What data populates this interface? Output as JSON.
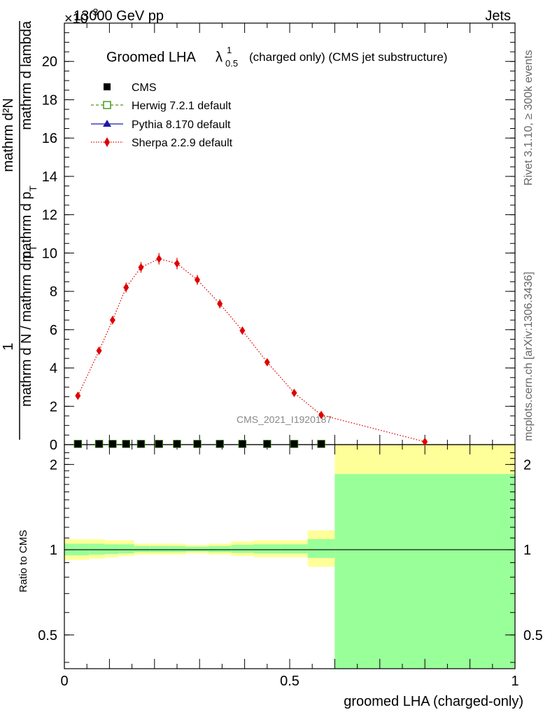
{
  "header": {
    "left": "13000 GeV pp",
    "right": "Jets",
    "exponent": "×10",
    "exponent_power": "-3"
  },
  "side_labels": {
    "rivet": "Rivet 3.1.10, ≥ 300k events",
    "mcplots": "mcplots.cern.ch [arXiv:1306.3436]"
  },
  "watermark": "CMS_2021_I1920187",
  "colors": {
    "cms": "#000000",
    "herwig": "#4a9a1e",
    "pythia": "#1a1aa8",
    "sherpa": "#e00000",
    "band_yellow": "#ffff99",
    "band_green": "#99ff99"
  },
  "chart_data": [
    {
      "type": "line",
      "title": "Groomed LHA",
      "title_symbol": "λ",
      "title_sup": "1",
      "title_sub": "0.5",
      "title_suffix": "(charged only) (CMS jet substructure)",
      "ylabel_top": "mathrm d²N",
      "ylabel_mid": "mathrm d p",
      "ylabel_mid_sub": "T",
      "ylabel_mid2": " mathrm d lambda",
      "ylabel_one": "1",
      "ylabel_bottom": "mathrm d N / mathrm d p",
      "ylabel_bottom_sub": "T",
      "xlim": [
        0,
        1
      ],
      "ylim": [
        0,
        22
      ],
      "yticks": [
        "0",
        "2",
        "4",
        "6",
        "8",
        "10",
        "12",
        "14",
        "16",
        "18",
        "20"
      ],
      "legend": {
        "position": "top-left",
        "entries": [
          "CMS",
          "Herwig 7.2.1 default",
          "Pythia 8.170 default",
          "Sherpa 2.2.9 default"
        ]
      },
      "x": [
        0.03,
        0.077,
        0.107,
        0.137,
        0.17,
        0.21,
        0.25,
        0.295,
        0.345,
        0.395,
        0.45,
        0.51,
        0.57,
        0.8
      ],
      "series": [
        {
          "name": "CMS",
          "values": [
            0,
            0,
            0,
            0,
            0,
            0,
            0,
            0,
            0,
            0,
            0,
            0,
            0,
            null
          ]
        },
        {
          "name": "Herwig 7.2.1 default",
          "values": [
            0,
            0,
            0,
            0,
            0,
            0,
            0,
            0,
            0,
            0,
            0,
            0,
            0,
            null
          ]
        },
        {
          "name": "Pythia 8.170 default",
          "values": [
            0,
            0,
            0,
            0,
            0,
            0,
            0,
            0,
            0,
            0,
            0,
            0,
            0,
            null
          ]
        },
        {
          "name": "Sherpa 2.2.9 default",
          "values": [
            2.55,
            4.9,
            6.5,
            8.2,
            9.25,
            9.7,
            9.45,
            8.6,
            7.35,
            5.95,
            4.3,
            2.7,
            1.55,
            0.15
          ],
          "errors": [
            0.12,
            0.2,
            0.22,
            0.26,
            0.28,
            0.3,
            0.3,
            0.26,
            0.24,
            0.2,
            0.16,
            0.12,
            0.1,
            0.05
          ]
        }
      ]
    },
    {
      "type": "area",
      "ylabel": "Ratio to CMS",
      "xlabel": "groomed LHA (charged-only)",
      "xlim": [
        0,
        1
      ],
      "ylim": [
        0.38,
        2.35
      ],
      "log_y": true,
      "xticks": [
        "0",
        "0.5",
        "1"
      ],
      "yticks": [
        "0.5",
        "1",
        "2"
      ],
      "reference_line": 1,
      "bins": [
        0,
        0.055,
        0.09,
        0.12,
        0.155,
        0.19,
        0.23,
        0.27,
        0.32,
        0.37,
        0.42,
        0.48,
        0.54,
        0.6,
        1.0
      ],
      "band_yellow_lo": [
        0.92,
        0.93,
        0.94,
        0.95,
        0.96,
        0.96,
        0.96,
        0.97,
        0.96,
        0.95,
        0.94,
        0.94,
        0.87,
        0.35
      ],
      "band_yellow_hi": [
        1.09,
        1.09,
        1.08,
        1.08,
        1.05,
        1.05,
        1.05,
        1.04,
        1.05,
        1.07,
        1.08,
        1.08,
        1.17,
        2.35
      ],
      "band_green_lo": [
        0.955,
        0.96,
        0.965,
        0.97,
        0.98,
        0.98,
        0.98,
        0.985,
        0.98,
        0.975,
        0.97,
        0.97,
        0.935,
        0.35
      ],
      "band_green_hi": [
        1.05,
        1.05,
        1.045,
        1.045,
        1.03,
        1.03,
        1.03,
        1.025,
        1.03,
        1.04,
        1.045,
        1.045,
        1.09,
        1.85
      ]
    }
  ]
}
